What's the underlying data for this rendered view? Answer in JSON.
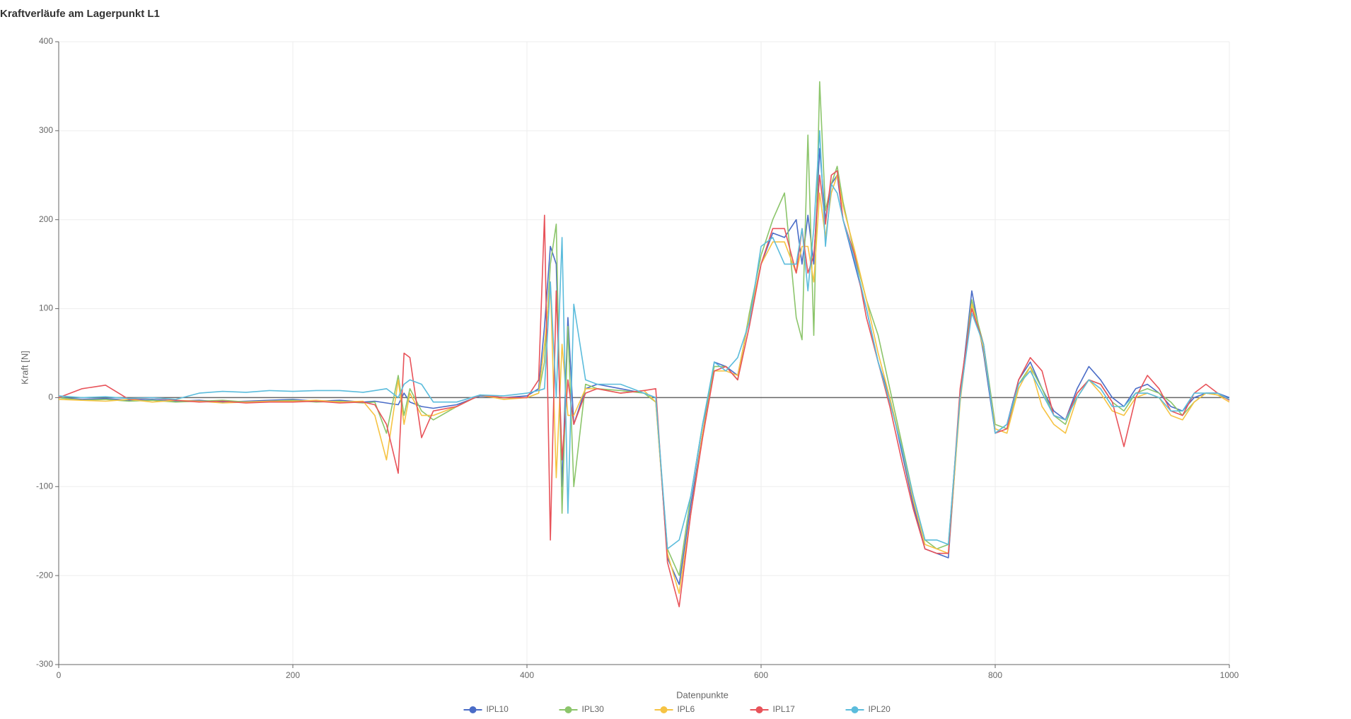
{
  "chart_data": {
    "type": "line",
    "title": "Kraftverläufe am Lagerpunkt L1",
    "x_label": "Datenpunkte",
    "y_label": "Kraft [N]",
    "xlim": [
      0,
      1000
    ],
    "xticks": [
      0,
      200,
      400,
      600,
      800,
      1000
    ],
    "ylim": [
      -300,
      400
    ],
    "yticks": [
      -300,
      -200,
      -100,
      0,
      100,
      200,
      300,
      400
    ],
    "grid": true,
    "legend": "bottom",
    "x": [
      0,
      20,
      40,
      60,
      80,
      100,
      120,
      140,
      160,
      180,
      200,
      220,
      240,
      260,
      270,
      280,
      290,
      295,
      300,
      310,
      320,
      340,
      360,
      380,
      400,
      410,
      415,
      420,
      425,
      430,
      435,
      440,
      450,
      460,
      480,
      500,
      510,
      520,
      530,
      540,
      550,
      560,
      570,
      580,
      590,
      600,
      610,
      620,
      630,
      635,
      640,
      645,
      650,
      655,
      660,
      665,
      670,
      680,
      690,
      700,
      710,
      720,
      730,
      740,
      750,
      760,
      770,
      780,
      790,
      800,
      810,
      820,
      830,
      840,
      850,
      860,
      870,
      880,
      890,
      900,
      910,
      920,
      930,
      940,
      950,
      960,
      970,
      980,
      990,
      1000
    ],
    "series": [
      {
        "name": "IPL10",
        "color": "#4a6cc7",
        "values": [
          0,
          -2,
          -1,
          -3,
          -2,
          -4,
          -3,
          -5,
          -4,
          -3,
          -2,
          -4,
          -3,
          -5,
          -4,
          -6,
          -8,
          5,
          -5,
          -10,
          -12,
          -8,
          2,
          0,
          2,
          10,
          80,
          170,
          150,
          -100,
          90,
          -30,
          10,
          15,
          10,
          5,
          0,
          -180,
          -210,
          -120,
          -40,
          40,
          35,
          25,
          90,
          150,
          185,
          180,
          200,
          150,
          205,
          150,
          280,
          200,
          240,
          250,
          200,
          150,
          100,
          40,
          0,
          -60,
          -120,
          -170,
          -175,
          -180,
          0,
          120,
          50,
          -40,
          -30,
          20,
          40,
          10,
          -15,
          -25,
          10,
          35,
          20,
          0,
          -10,
          10,
          15,
          5,
          -10,
          -15,
          0,
          5,
          5,
          0
        ]
      },
      {
        "name": "IPL30",
        "color": "#8cc56b",
        "values": [
          0,
          -3,
          -2,
          -4,
          -3,
          -5,
          -4,
          -3,
          -5,
          -4,
          -3,
          -5,
          -4,
          -6,
          -5,
          -40,
          25,
          -20,
          10,
          -15,
          -25,
          -10,
          3,
          0,
          0,
          5,
          40,
          150,
          195,
          -130,
          80,
          -100,
          15,
          10,
          8,
          5,
          -5,
          -170,
          -200,
          -110,
          -30,
          35,
          35,
          20,
          95,
          160,
          200,
          230,
          90,
          65,
          295,
          70,
          355,
          210,
          240,
          260,
          220,
          160,
          110,
          70,
          10,
          -50,
          -110,
          -160,
          -170,
          -165,
          0,
          110,
          60,
          -30,
          -35,
          15,
          35,
          10,
          -20,
          -30,
          5,
          20,
          15,
          -5,
          -15,
          5,
          10,
          5,
          -5,
          -20,
          -5,
          5,
          3,
          -2
        ]
      },
      {
        "name": "IPL6",
        "color": "#f6c343",
        "values": [
          -2,
          -3,
          -4,
          -2,
          -5,
          -3,
          -4,
          -6,
          -5,
          -4,
          -4,
          -3,
          -5,
          -4,
          -20,
          -70,
          20,
          -30,
          5,
          -20,
          -20,
          -10,
          3,
          -2,
          0,
          5,
          60,
          130,
          -90,
          60,
          -20,
          -20,
          10,
          10,
          5,
          8,
          -5,
          -175,
          -220,
          -130,
          -40,
          30,
          30,
          25,
          90,
          150,
          175,
          175,
          140,
          170,
          170,
          130,
          230,
          180,
          230,
          250,
          215,
          165,
          110,
          50,
          0,
          -55,
          -115,
          -165,
          -170,
          -175,
          -5,
          105,
          55,
          -35,
          -40,
          10,
          35,
          -10,
          -30,
          -40,
          0,
          20,
          5,
          -15,
          -20,
          0,
          5,
          0,
          -20,
          -25,
          -5,
          5,
          3,
          -5
        ]
      },
      {
        "name": "IPL17",
        "color": "#e8535a",
        "values": [
          0,
          10,
          14,
          -2,
          0,
          -3,
          -5,
          -4,
          -6,
          -5,
          -5,
          -4,
          -6,
          -5,
          -8,
          -30,
          -85,
          50,
          45,
          -45,
          -15,
          -10,
          3,
          0,
          0,
          20,
          205,
          -160,
          120,
          -70,
          20,
          -30,
          5,
          10,
          5,
          8,
          10,
          -185,
          -235,
          -130,
          -45,
          30,
          35,
          20,
          80,
          150,
          190,
          190,
          140,
          190,
          140,
          160,
          250,
          195,
          250,
          255,
          200,
          160,
          90,
          40,
          -10,
          -70,
          -125,
          -170,
          -175,
          -175,
          10,
          100,
          60,
          -40,
          -35,
          20,
          45,
          30,
          -20,
          -25,
          5,
          20,
          15,
          -5,
          -55,
          0,
          25,
          10,
          -15,
          -20,
          5,
          15,
          5,
          -3
        ]
      },
      {
        "name": "IPL20",
        "color": "#5bbcdc",
        "values": [
          2,
          0,
          1,
          -1,
          0,
          -2,
          5,
          7,
          6,
          8,
          7,
          8,
          8,
          6,
          8,
          10,
          0,
          15,
          20,
          15,
          -5,
          -5,
          3,
          2,
          5,
          8,
          10,
          130,
          0,
          180,
          -130,
          105,
          20,
          15,
          15,
          5,
          0,
          -170,
          -160,
          -110,
          -30,
          40,
          30,
          45,
          85,
          170,
          180,
          150,
          150,
          190,
          120,
          190,
          300,
          170,
          240,
          230,
          200,
          155,
          100,
          40,
          -5,
          -55,
          -110,
          -160,
          -160,
          -165,
          0,
          95,
          60,
          -40,
          -30,
          15,
          30,
          5,
          -20,
          -25,
          0,
          20,
          10,
          -10,
          -10,
          5,
          5,
          0,
          -15,
          -15,
          5,
          5,
          5,
          -2
        ]
      }
    ]
  }
}
